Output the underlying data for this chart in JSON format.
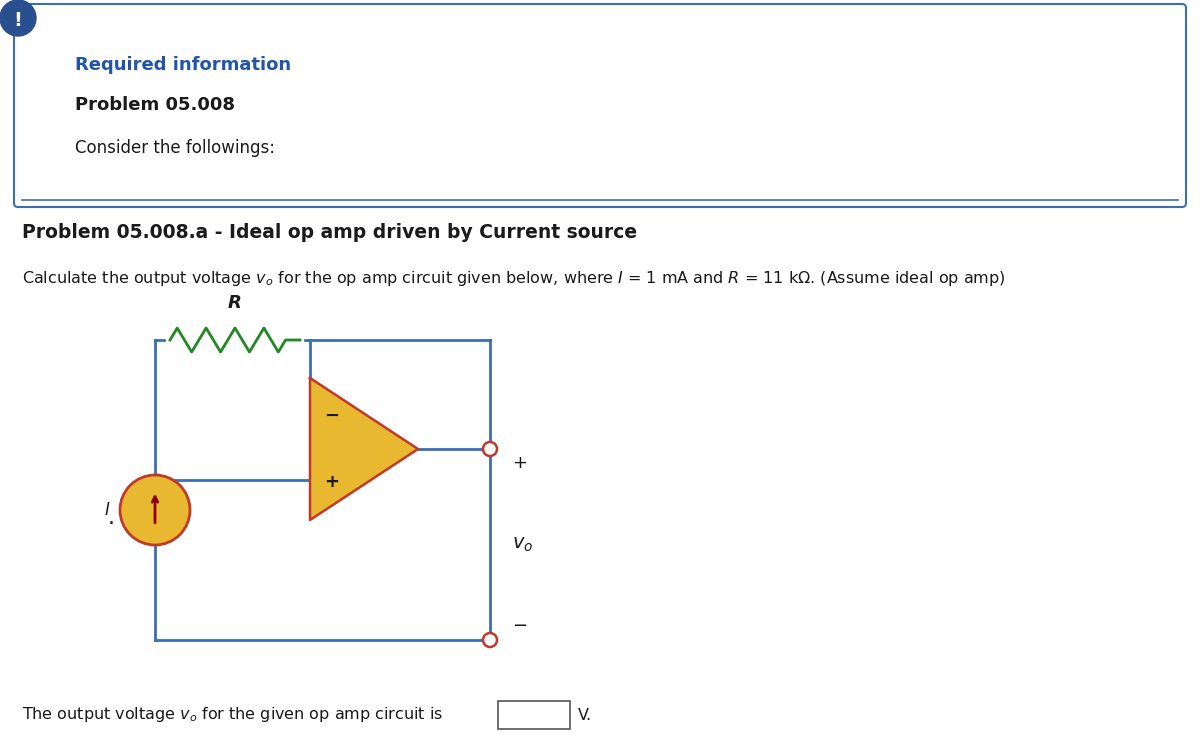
{
  "bg_color": "#ffffff",
  "border_color": "#3d6eb5",
  "exclamation_bg": "#2a4f8f",
  "required_info_color": "#2255aa",
  "wire_color": "#3d6eb5",
  "opamp_fill": "#e8b830",
  "opamp_edge": "#c0392b",
  "resistor_color": "#2e8b2e",
  "terminal_color": "#c0392b",
  "cs_fill": "#e8b830",
  "cs_edge": "#c0392b",
  "header_text_1": "Required information",
  "header_text_2": "Problem 05.008",
  "header_text_3": "Consider the followings:",
  "section_title": "Problem 05.008.a - Ideal op amp driven by Current source"
}
